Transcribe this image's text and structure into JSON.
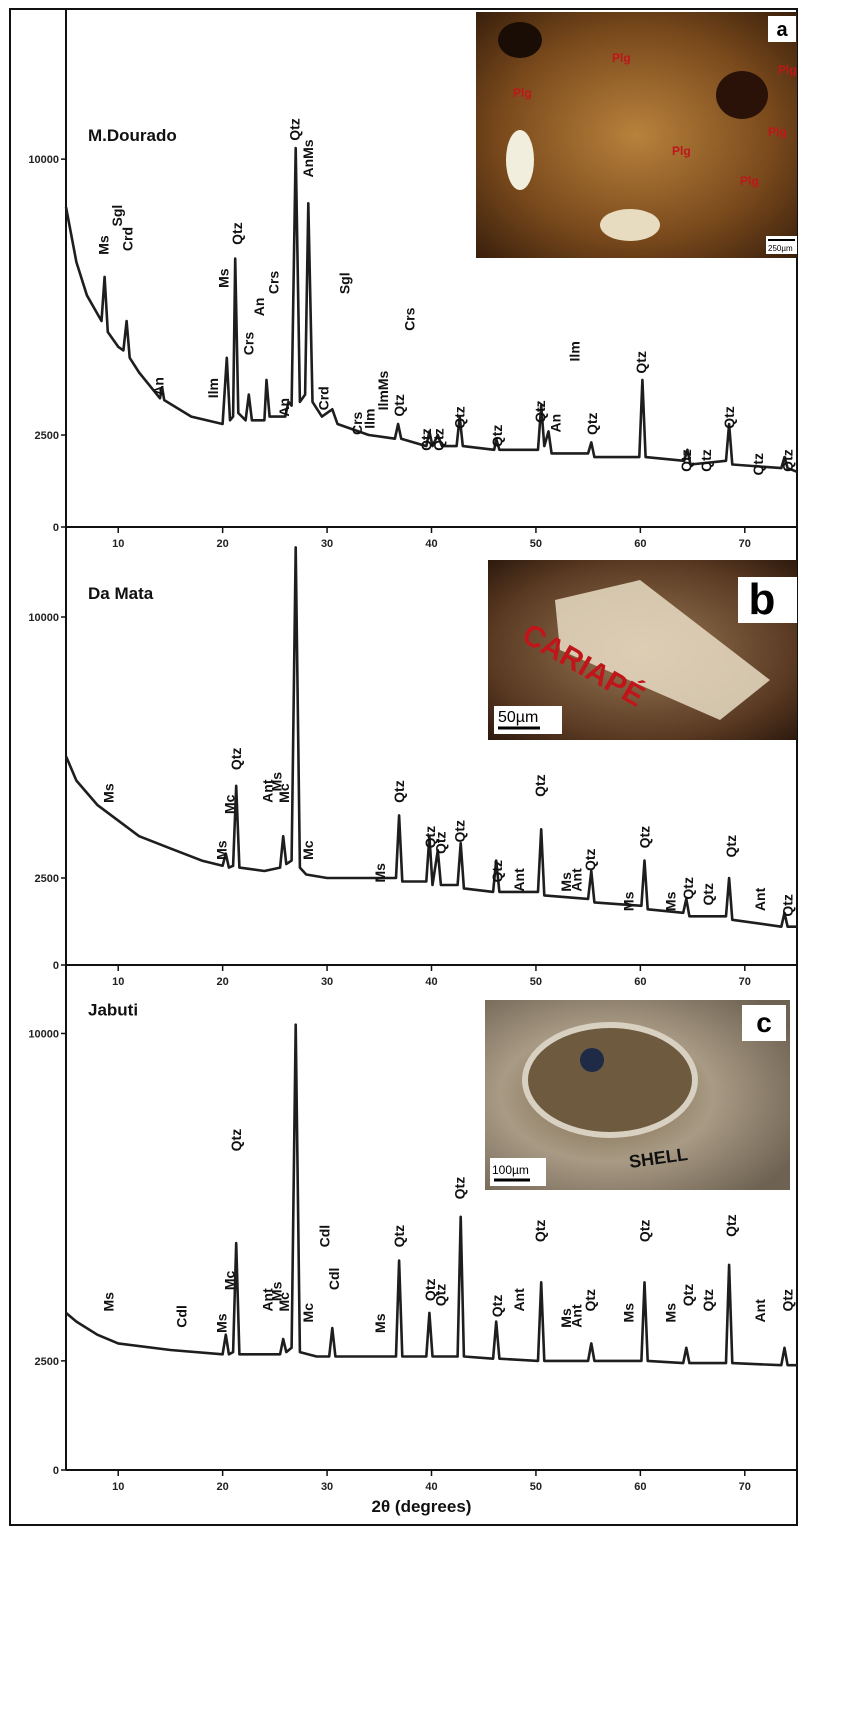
{
  "chart_data": [
    {
      "type": "line",
      "title": "M.Dourado",
      "xlim": [
        5,
        75
      ],
      "xticks": [
        10,
        20,
        30,
        40,
        50,
        60,
        70
      ],
      "ylim": [
        0,
        14000
      ],
      "yticks": [
        0,
        2500,
        10000
      ],
      "color": "#1e1e1e",
      "x": [
        5,
        6,
        7,
        8,
        8.4,
        8.7,
        9.0,
        10,
        10.5,
        10.8,
        11.1,
        12,
        14,
        14.2,
        14.4,
        17,
        20,
        20.4,
        20.7,
        21.0,
        21.2,
        21.5,
        22.2,
        22.5,
        22.8,
        24.0,
        24.2,
        24.5,
        26.0,
        26.3,
        26.6,
        27.0,
        27.4,
        27.9,
        28.2,
        28.6,
        29.5,
        30.5,
        31,
        33,
        34,
        36.5,
        36.8,
        37.1,
        39.5,
        39.8,
        40.1,
        40.6,
        41,
        42.4,
        42.7,
        43.0,
        46,
        46.2,
        46.5,
        50.2,
        50.5,
        50.8,
        51.2,
        51.5,
        55,
        55.3,
        55.6,
        59.9,
        60.2,
        60.5,
        64.2,
        64.5,
        64.8,
        68.2,
        68.5,
        68.8,
        73.5,
        73.8,
        74.1,
        75
      ],
      "values": [
        8700,
        7200,
        6300,
        5800,
        5600,
        6800,
        5300,
        4900,
        4800,
        5600,
        4600,
        4200,
        3500,
        3800,
        3450,
        3000,
        2800,
        4600,
        2900,
        3000,
        7300,
        3100,
        2900,
        3600,
        2900,
        2900,
        4000,
        3000,
        3000,
        3400,
        3300,
        10300,
        3400,
        3600,
        8800,
        3400,
        3000,
        3200,
        2800,
        2600,
        2500,
        2400,
        2800,
        2400,
        2200,
        2600,
        2200,
        2500,
        2200,
        2200,
        3000,
        2200,
        2100,
        2400,
        2100,
        2100,
        3300,
        2200,
        2600,
        2000,
        2000,
        2300,
        1900,
        1900,
        4000,
        1900,
        1800,
        2100,
        1700,
        1800,
        2800,
        1700,
        1600,
        1900,
        1600,
        1500
      ],
      "annotations": [
        {
          "text": "Ms",
          "x": 8.7,
          "y": 7400
        },
        {
          "text": "Sgl",
          "x": 10.0,
          "y": 8170
        },
        {
          "text": "Crd",
          "x": 11.0,
          "y": 7500
        },
        {
          "text": "An",
          "x": 14.0,
          "y": 3570
        },
        {
          "text": "Ilm",
          "x": 19.2,
          "y": 3500
        },
        {
          "text": "Ms",
          "x": 20.2,
          "y": 6500
        },
        {
          "text": "Qtz",
          "x": 21.5,
          "y": 7670
        },
        {
          "text": "Crs",
          "x": 22.6,
          "y": 4670
        },
        {
          "text": "An",
          "x": 23.6,
          "y": 5730
        },
        {
          "text": "Crs",
          "x": 25.0,
          "y": 6330
        },
        {
          "text": "An",
          "x": 26.0,
          "y": 3000
        },
        {
          "text": "Qtz",
          "x": 27.0,
          "y": 10500
        },
        {
          "text": "AnMs",
          "x": 28.3,
          "y": 9500
        },
        {
          "text": "Crd",
          "x": 29.8,
          "y": 3170
        },
        {
          "text": "Sgl",
          "x": 31.8,
          "y": 6330
        },
        {
          "text": "Crs",
          "x": 33.0,
          "y": 2500
        },
        {
          "text": "Ilm",
          "x": 34.2,
          "y": 2670
        },
        {
          "text": "IlmMs",
          "x": 35.5,
          "y": 3170
        },
        {
          "text": "Qtz",
          "x": 37.0,
          "y": 3000
        },
        {
          "text": "Crs",
          "x": 38.0,
          "y": 5330
        },
        {
          "text": "Qtz",
          "x": 39.6,
          "y": 2070
        },
        {
          "text": "Qtz",
          "x": 40.8,
          "y": 2070
        },
        {
          "text": "Qtz",
          "x": 42.8,
          "y": 2670
        },
        {
          "text": "Qtz",
          "x": 46.4,
          "y": 2170
        },
        {
          "text": "Qtz",
          "x": 50.5,
          "y": 2830
        },
        {
          "text": "An",
          "x": 52.0,
          "y": 2570
        },
        {
          "text": "Ilm",
          "x": 53.8,
          "y": 4500
        },
        {
          "text": "Qtz",
          "x": 55.5,
          "y": 2500
        },
        {
          "text": "Qtz",
          "x": 60.2,
          "y": 4170
        },
        {
          "text": "Qtz",
          "x": 64.5,
          "y": 1500
        },
        {
          "text": "Qtz",
          "x": 66.4,
          "y": 1500
        },
        {
          "text": "Qtz",
          "x": 68.6,
          "y": 2670
        },
        {
          "text": "Qtz",
          "x": 71.4,
          "y": 1400
        },
        {
          "text": "Qtz",
          "x": 74.2,
          "y": 1500
        }
      ]
    },
    {
      "type": "line",
      "title": "Da Mata",
      "xlim": [
        5,
        75
      ],
      "xticks": [
        10,
        20,
        30,
        40,
        50,
        60,
        70
      ],
      "ylim": [
        0,
        12500
      ],
      "yticks": [
        0,
        2500,
        10000
      ],
      "color": "#1e1e1e",
      "x": [
        5,
        6,
        8,
        10,
        12,
        15,
        18,
        20,
        20.3,
        20.6,
        21.0,
        21.3,
        21.6,
        24,
        25.5,
        25.8,
        26.1,
        26.6,
        27.0,
        27.4,
        28,
        30,
        35,
        36.6,
        36.9,
        37.2,
        39.5,
        39.8,
        40.1,
        40.6,
        40.9,
        42.5,
        42.8,
        43.1,
        45.9,
        46.2,
        46.5,
        50.2,
        50.5,
        50.8,
        55,
        55.3,
        55.6,
        60.1,
        60.4,
        60.7,
        64.1,
        64.4,
        64.7,
        68.2,
        68.5,
        68.8,
        73.5,
        73.8,
        74.1,
        75
      ],
      "values": [
        6000,
        5300,
        4600,
        4150,
        3700,
        3350,
        3000,
        2850,
        3200,
        2800,
        2850,
        5150,
        2800,
        2700,
        2800,
        3700,
        2900,
        3000,
        12000,
        2800,
        2600,
        2500,
        2500,
        2500,
        4300,
        2400,
        2400,
        3700,
        2300,
        3300,
        2300,
        2300,
        3500,
        2200,
        2100,
        3000,
        2100,
        2100,
        3900,
        2000,
        1900,
        2700,
        1800,
        1700,
        3000,
        1600,
        1500,
        1900,
        1400,
        1400,
        2500,
        1300,
        1100,
        1500,
        1100,
        1100
      ],
      "annotations": [
        {
          "text": "Ms",
          "x": 9.2,
          "y": 4660
        },
        {
          "text": "Ms",
          "x": 20.0,
          "y": 3020
        },
        {
          "text": "Mc",
          "x": 20.8,
          "y": 4340
        },
        {
          "text": "Qtz",
          "x": 21.4,
          "y": 5600
        },
        {
          "text": "Ant",
          "x": 24.4,
          "y": 4660
        },
        {
          "text": "Ms",
          "x": 25.3,
          "y": 4990
        },
        {
          "text": "Mc",
          "x": 26.0,
          "y": 4660
        },
        {
          "text": "Mc",
          "x": 28.3,
          "y": 3020
        },
        {
          "text": "Ms",
          "x": 35.2,
          "y": 2370
        },
        {
          "text": "Qtz",
          "x": 37.0,
          "y": 4660
        },
        {
          "text": "Qtz",
          "x": 40.0,
          "y": 3350
        },
        {
          "text": "Qtz",
          "x": 41.0,
          "y": 3190
        },
        {
          "text": "Qtz",
          "x": 42.8,
          "y": 3520
        },
        {
          "text": "Qtz",
          "x": 46.4,
          "y": 2370
        },
        {
          "text": "Ant",
          "x": 48.5,
          "y": 2110
        },
        {
          "text": "Qtz",
          "x": 50.5,
          "y": 4830
        },
        {
          "text": "Ms",
          "x": 53.0,
          "y": 2110
        },
        {
          "text": "Ant",
          "x": 54.0,
          "y": 2110
        },
        {
          "text": "Qtz",
          "x": 55.3,
          "y": 2700
        },
        {
          "text": "Ms",
          "x": 59.0,
          "y": 1550
        },
        {
          "text": "Qtz",
          "x": 60.5,
          "y": 3350
        },
        {
          "text": "Ms",
          "x": 63.0,
          "y": 1550
        },
        {
          "text": "Qtz",
          "x": 64.7,
          "y": 1880
        },
        {
          "text": "Qtz",
          "x": 66.6,
          "y": 1710
        },
        {
          "text": "Qtz",
          "x": 68.8,
          "y": 3090
        },
        {
          "text": "Ant",
          "x": 71.6,
          "y": 1550
        },
        {
          "text": "Qtz",
          "x": 74.2,
          "y": 1390
        }
      ]
    },
    {
      "type": "line",
      "title": "Jabuti",
      "xlabel": "2θ (degrees)",
      "xlim": [
        5,
        75
      ],
      "xticks": [
        10,
        20,
        30,
        40,
        50,
        60,
        70
      ],
      "ylim": [
        0,
        11500
      ],
      "yticks": [
        0,
        2500,
        10000
      ],
      "color": "#1e1e1e",
      "x": [
        5,
        6,
        8,
        10,
        15,
        20,
        20.3,
        20.6,
        21.0,
        21.3,
        21.6,
        25.5,
        25.8,
        26.1,
        26.6,
        27.0,
        27.4,
        29,
        30.2,
        30.5,
        30.8,
        36.6,
        36.9,
        37.2,
        39.5,
        39.8,
        40.1,
        42.5,
        42.8,
        43.1,
        45.9,
        46.2,
        46.5,
        50.2,
        50.5,
        50.8,
        55,
        55.3,
        55.6,
        60.1,
        60.4,
        60.7,
        64.1,
        64.4,
        64.7,
        68.2,
        68.5,
        68.8,
        73.5,
        73.8,
        74.1,
        75
      ],
      "values": [
        3600,
        3400,
        3100,
        2900,
        2750,
        2650,
        3100,
        2650,
        2700,
        5200,
        2650,
        2650,
        3000,
        2700,
        2800,
        10200,
        2700,
        2600,
        2600,
        3250,
        2600,
        2600,
        4800,
        2600,
        2600,
        3600,
        2600,
        2600,
        5800,
        2600,
        2550,
        3400,
        2550,
        2500,
        4300,
        2500,
        2500,
        2900,
        2500,
        2500,
        4300,
        2500,
        2450,
        2800,
        2450,
        2450,
        4700,
        2450,
        2400,
        2800,
        2400,
        2400
      ],
      "annotations": [
        {
          "text": "Ms",
          "x": 9.2,
          "y": 3630
        },
        {
          "text": "Cdl",
          "x": 16.2,
          "y": 3260
        },
        {
          "text": "Ms",
          "x": 20.0,
          "y": 3140
        },
        {
          "text": "Mc",
          "x": 20.8,
          "y": 4120
        },
        {
          "text": "Qtz",
          "x": 21.4,
          "y": 7300
        },
        {
          "text": "Ant",
          "x": 24.4,
          "y": 3630
        },
        {
          "text": "Ms",
          "x": 25.3,
          "y": 3870
        },
        {
          "text": "Mc",
          "x": 26.0,
          "y": 3630
        },
        {
          "text": "Mc",
          "x": 28.3,
          "y": 3380
        },
        {
          "text": "Cdl",
          "x": 29.9,
          "y": 5100
        },
        {
          "text": "Cdl",
          "x": 30.8,
          "y": 4120
        },
        {
          "text": "Ms",
          "x": 35.2,
          "y": 3140
        },
        {
          "text": "Qtz",
          "x": 37.0,
          "y": 5100
        },
        {
          "text": "Qtz",
          "x": 40.0,
          "y": 3870
        },
        {
          "text": "Qtz",
          "x": 41.0,
          "y": 3750
        },
        {
          "text": "Qtz",
          "x": 42.8,
          "y": 6200
        },
        {
          "text": "Qtz",
          "x": 46.4,
          "y": 3500
        },
        {
          "text": "Ant",
          "x": 48.5,
          "y": 3630
        },
        {
          "text": "Qtz",
          "x": 50.5,
          "y": 5220
        },
        {
          "text": "Ms",
          "x": 53.0,
          "y": 3260
        },
        {
          "text": "Ant",
          "x": 54.0,
          "y": 3260
        },
        {
          "text": "Qtz",
          "x": 55.3,
          "y": 3630
        },
        {
          "text": "Ms",
          "x": 59.0,
          "y": 3380
        },
        {
          "text": "Qtz",
          "x": 60.5,
          "y": 5220
        },
        {
          "text": "Ms",
          "x": 63.0,
          "y": 3380
        },
        {
          "text": "Qtz",
          "x": 64.7,
          "y": 3750
        },
        {
          "text": "Qtz",
          "x": 66.6,
          "y": 3630
        },
        {
          "text": "Qtz",
          "x": 68.8,
          "y": 5340
        },
        {
          "text": "Ant",
          "x": 71.6,
          "y": 3380
        },
        {
          "text": "Qtz",
          "x": 74.2,
          "y": 3630
        }
      ]
    }
  ],
  "insets": [
    {
      "letter": "a",
      "labels": [
        "Plg",
        "Plg",
        "Plg",
        "Plg",
        "Plg",
        "Plg"
      ],
      "scale": "250µm"
    },
    {
      "letter": "b",
      "label": "CARIAPÉ",
      "scale": "50µm"
    },
    {
      "letter": "c",
      "label": "SHELL",
      "scale": "100µm"
    }
  ]
}
